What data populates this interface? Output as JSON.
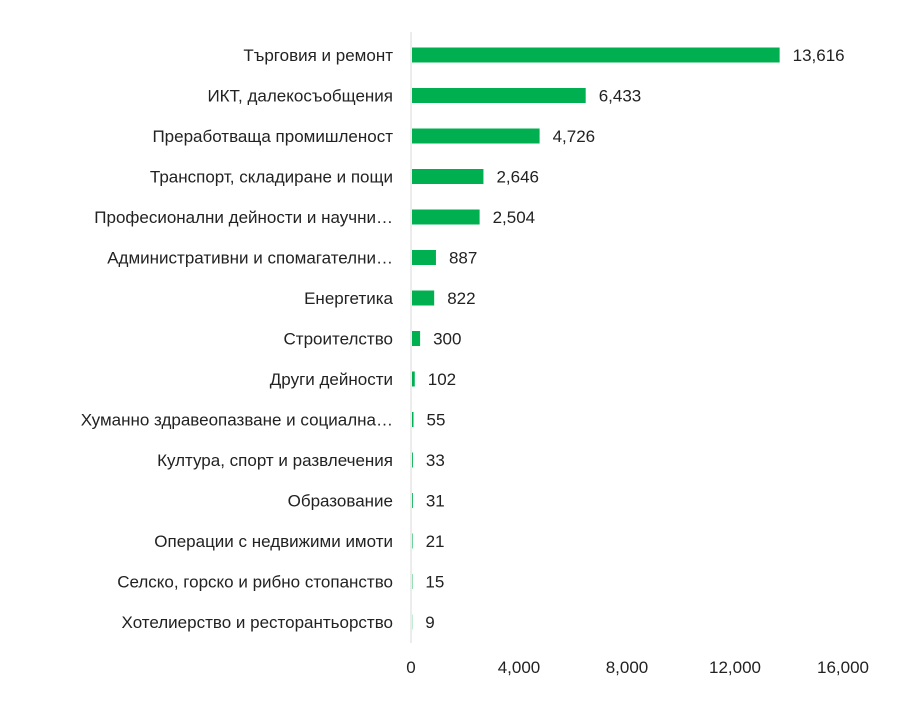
{
  "chart_data": {
    "type": "bar",
    "orientation": "horizontal",
    "categories": [
      "Търговия и ремонт",
      "ИКТ, далекосъобщения",
      "Преработваща промишленост",
      "Транспорт, складиране и пощи",
      "Професионални дейности и научни…",
      "Административни и спомагателни…",
      "Енергетика",
      "Строителство",
      "Други дейности",
      "Хуманно здравеопазване и социална…",
      "Култура, спорт и развлечения",
      "Образование",
      "Операции с недвижими имоти",
      "Селско, горско и рибно стопанство",
      "Хотелиерство и ресторантьорство"
    ],
    "values": [
      13616,
      6433,
      4726,
      2646,
      2504,
      887,
      822,
      300,
      102,
      55,
      33,
      31,
      21,
      15,
      9
    ],
    "value_labels": [
      "13,616",
      "6,433",
      "4,726",
      "2,646",
      "2,504",
      "887",
      "822",
      "300",
      "102",
      "55",
      "33",
      "31",
      "21",
      "15",
      "9"
    ],
    "x_ticks": [
      0,
      4000,
      8000,
      12000,
      16000
    ],
    "x_tick_labels": [
      "0",
      "4,000",
      "8,000",
      "12,000",
      "16,000"
    ],
    "xlim": [
      0,
      16000
    ],
    "grid": false,
    "legend": "none",
    "bar_color": "#00B050"
  }
}
